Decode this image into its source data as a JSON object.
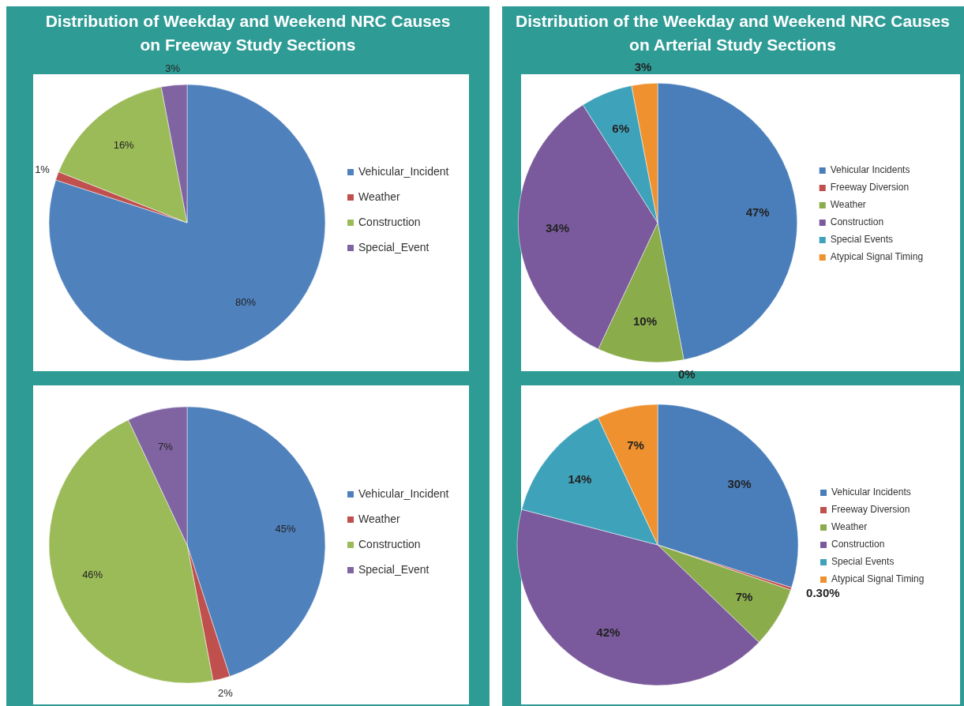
{
  "chart_data": [
    {
      "type": "pie",
      "title": "Distribution of Weekday and Weekend NRC Causes on Freeway Study Sections",
      "categories": [
        "Vehicular_Incident",
        "Weather",
        "Construction",
        "Special_Event"
      ],
      "values": [
        80,
        1,
        16,
        3
      ],
      "value_labels": [
        "80%",
        "1%",
        "16%",
        "3%"
      ],
      "colors": [
        "#4f81bd",
        "#c0504d",
        "#9bbb59",
        "#8064a2"
      ],
      "legend": "right"
    },
    {
      "type": "pie",
      "categories": [
        "Vehicular_Incident",
        "Weather",
        "Construction",
        "Special_Event"
      ],
      "values": [
        45,
        2,
        46,
        7
      ],
      "value_labels": [
        "45%",
        "2%",
        "46%",
        "7%"
      ],
      "colors": [
        "#4f81bd",
        "#c0504d",
        "#9bbb59",
        "#8064a2"
      ],
      "legend": "right"
    },
    {
      "type": "pie",
      "title": "Distribution of the Weekday and Weekend NRC Causes on Arterial Study Sections",
      "categories": [
        "Vehicular Incidents",
        "Freeway Diversion",
        "Weather",
        "Construction",
        "Special Events",
        "Atypical Signal Timing"
      ],
      "values": [
        47,
        0,
        10,
        34,
        6,
        3
      ],
      "value_labels": [
        "47%",
        "0%",
        "10%",
        "34%",
        "6%",
        "3%"
      ],
      "colors": [
        "#4a7ebb",
        "#c0504d",
        "#8aac4b",
        "#7a5a9c",
        "#3fa2bb",
        "#f0912f"
      ],
      "legend": "right"
    },
    {
      "type": "pie",
      "categories": [
        "Vehicular Incidents",
        "Freeway Diversion",
        "Weather",
        "Construction",
        "Special Events",
        "Atypical Signal Timing"
      ],
      "values": [
        30,
        0.3,
        7,
        42,
        14,
        7
      ],
      "value_labels": [
        "30%",
        "0.30%",
        "7%",
        "42%",
        "14%",
        "7%"
      ],
      "colors": [
        "#4a7ebb",
        "#c0504d",
        "#8aac4b",
        "#7a5a9c",
        "#3fa2bb",
        "#f0912f"
      ],
      "legend": "right"
    }
  ]
}
